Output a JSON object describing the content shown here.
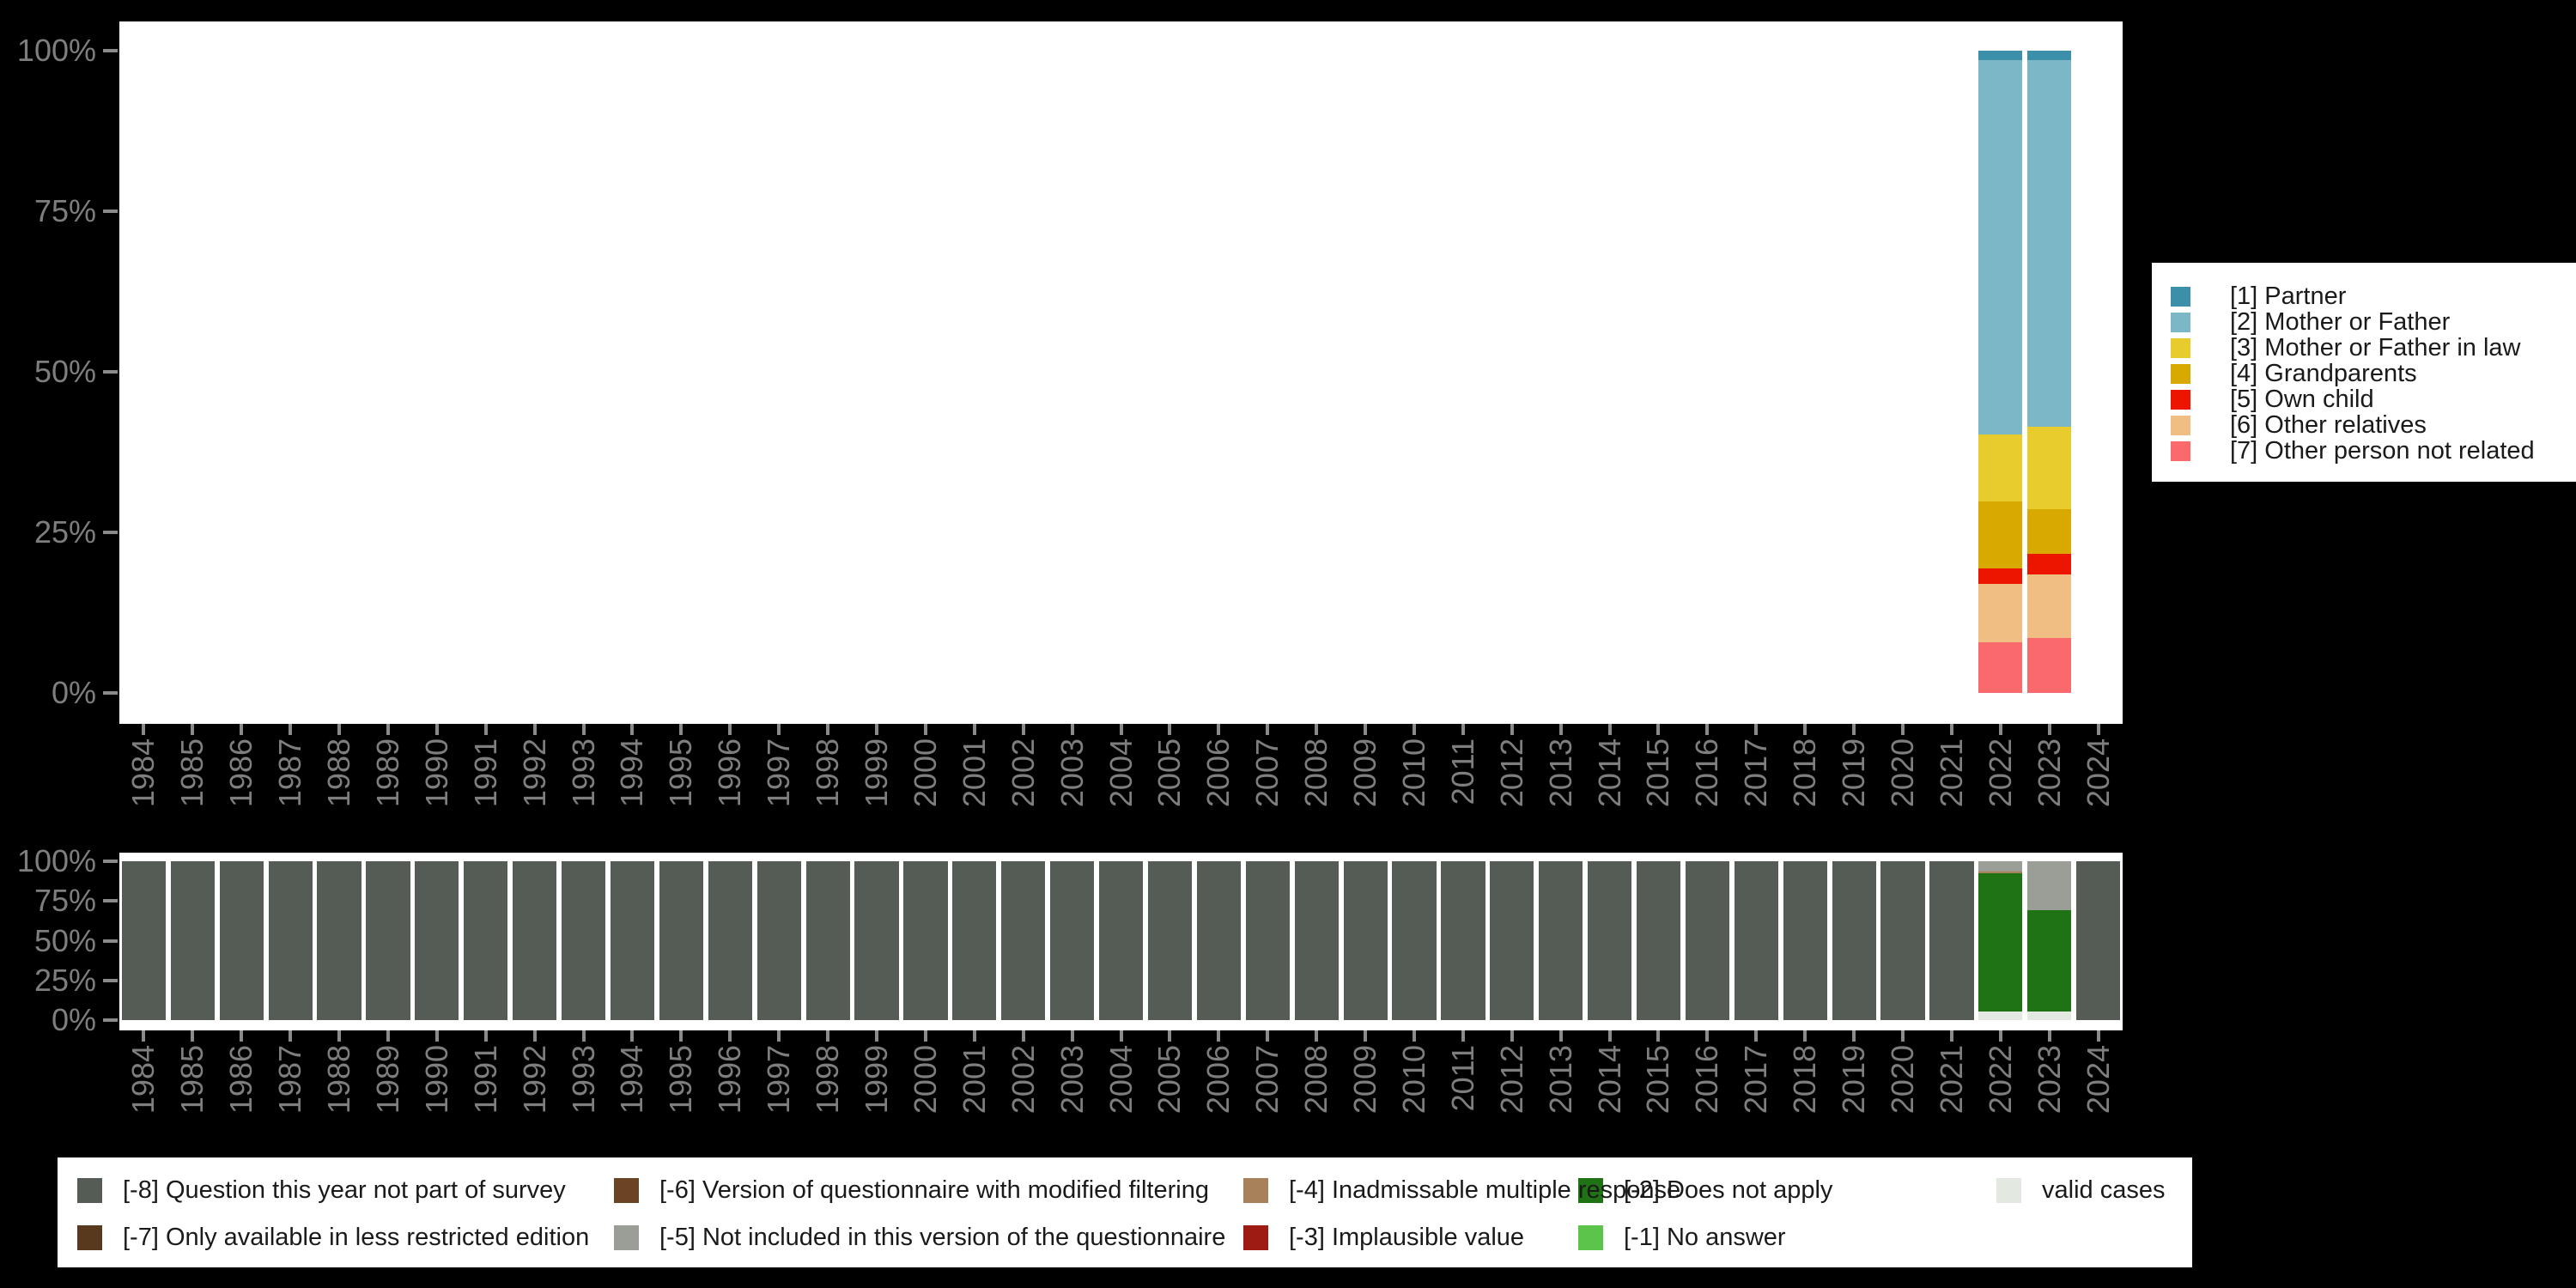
{
  "ui": {
    "background_color": "#000000",
    "panel_background_color": "#ffffff",
    "axis_text_color": "#7e7e7e",
    "tick_mark_color": "#8a8a8a",
    "legend_background_color": "#ffffff",
    "legend_text_color": "#1a1a1a"
  },
  "years": [
    "1984",
    "1985",
    "1986",
    "1987",
    "1988",
    "1989",
    "1990",
    "1991",
    "1992",
    "1993",
    "1994",
    "1995",
    "1996",
    "1997",
    "1998",
    "1999",
    "2000",
    "2001",
    "2002",
    "2003",
    "2004",
    "2005",
    "2006",
    "2007",
    "2008",
    "2009",
    "2010",
    "2011",
    "2012",
    "2013",
    "2014",
    "2015",
    "2016",
    "2017",
    "2018",
    "2019",
    "2020",
    "2021",
    "2022",
    "2023",
    "2024"
  ],
  "chart_data": [
    {
      "type": "bar",
      "stacked": true,
      "title": "",
      "xlabel": "",
      "ylabel": "",
      "x": "years (1984-2024, see top-level years array)",
      "x_tick_rotation": 90,
      "y_tick_labels_top_to_bottom": [
        "100%",
        "75%",
        "50%",
        "25%",
        "0%"
      ],
      "ylim": [
        0,
        100
      ],
      "grid": false,
      "legend_position": "right",
      "note": "Units: percent of valid answers. Only 2022 and 2023 have bars; all other years are empty.",
      "series": [
        {
          "label": "[1] Partner",
          "color": "#3b8fa9",
          "default": 0,
          "values": {
            "2022": 1.5,
            "2023": 1.5
          }
        },
        {
          "label": "[2] Mother or Father",
          "color": "#7cb7c8",
          "default": 0,
          "values": {
            "2022": 58.3,
            "2023": 57.1
          }
        },
        {
          "label": "[3] Mother or Father in law",
          "color": "#e8cb2d",
          "default": 0,
          "values": {
            "2022": 10.4,
            "2023": 12.8
          }
        },
        {
          "label": "[4] Grandparents",
          "color": "#d8a900",
          "default": 0,
          "values": {
            "2022": 10.4,
            "2023": 7.0
          }
        },
        {
          "label": "[5] Own child",
          "color": "#ee1500",
          "default": 0,
          "values": {
            "2022": 2.4,
            "2023": 3.2
          }
        },
        {
          "label": "[6] Other relatives",
          "color": "#f0be82",
          "default": 0,
          "values": {
            "2022": 9.1,
            "2023": 9.9
          }
        },
        {
          "label": "[7] Other person not related",
          "color": "#fa696c",
          "default": 0,
          "values": {
            "2022": 7.9,
            "2023": 8.5
          }
        }
      ]
    },
    {
      "type": "bar",
      "stacked": true,
      "title": "",
      "xlabel": "",
      "ylabel": "",
      "x": "years (1984-2024, see top-level years array)",
      "x_tick_rotation": 90,
      "y_tick_labels_top_to_bottom": [
        "100%",
        "75%",
        "50%",
        "25%",
        "0%"
      ],
      "ylim": [
        0,
        100
      ],
      "grid": false,
      "legend_position": "bottom",
      "note": "Missing-values chart. Series listed top-to-bottom within each stack; 'default' applies to every year not listed in 'values'.",
      "series": [
        {
          "label": "[-8] Question this year not part of survey",
          "color": "#555b55",
          "default": 100,
          "values": {
            "2022": 0,
            "2023": 0
          }
        },
        {
          "label": "[-7] Only available in less restricted edition",
          "color": "#59391e",
          "default": 0,
          "values": {}
        },
        {
          "label": "[-6] Version of questionnaire with modified filtering",
          "color": "#6b4423",
          "default": 0,
          "values": {}
        },
        {
          "label": "[-5] Not included in this version of the questionnaire",
          "color": "#9a9e96",
          "default": 0,
          "values": {
            "2022": 6.3,
            "2023": 30.8
          }
        },
        {
          "label": "[-4] Inadmissable multiple response",
          "color": "#a8805a",
          "default": 0,
          "values": {
            "2022": 1.4
          }
        },
        {
          "label": "[-3] Implausible value",
          "color": "#9e1b14",
          "default": 0,
          "values": {}
        },
        {
          "label": "[-2] Does not apply",
          "color": "#1f7315",
          "default": 0,
          "values": {
            "2022": 86.8,
            "2023": 63.7
          }
        },
        {
          "label": "[-1] No answer",
          "color": "#5cc44a",
          "default": 0,
          "values": {}
        },
        {
          "label": "valid cases",
          "color": "#e3e8e0",
          "default": 0,
          "values": {
            "2022": 5.5,
            "2023": 5.5
          }
        }
      ]
    }
  ]
}
